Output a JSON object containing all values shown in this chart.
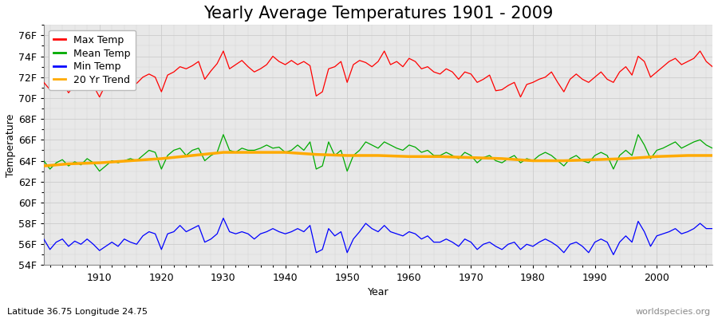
{
  "title": "Yearly Average Temperatures 1901 - 2009",
  "xlabel": "Year",
  "ylabel": "Temperature",
  "lat_lon_label": "Latitude 36.75 Longitude 24.75",
  "watermark": "worldspecies.org",
  "years": [
    1901,
    1902,
    1903,
    1904,
    1905,
    1906,
    1907,
    1908,
    1909,
    1910,
    1911,
    1912,
    1913,
    1914,
    1915,
    1916,
    1917,
    1918,
    1919,
    1920,
    1921,
    1922,
    1923,
    1924,
    1925,
    1926,
    1927,
    1928,
    1929,
    1930,
    1931,
    1932,
    1933,
    1934,
    1935,
    1936,
    1937,
    1938,
    1939,
    1940,
    1941,
    1942,
    1943,
    1944,
    1945,
    1946,
    1947,
    1948,
    1949,
    1950,
    1951,
    1952,
    1953,
    1954,
    1955,
    1956,
    1957,
    1958,
    1959,
    1960,
    1961,
    1962,
    1963,
    1964,
    1965,
    1966,
    1967,
    1968,
    1969,
    1970,
    1971,
    1972,
    1973,
    1974,
    1975,
    1976,
    1977,
    1978,
    1979,
    1980,
    1981,
    1982,
    1983,
    1984,
    1985,
    1986,
    1987,
    1988,
    1989,
    1990,
    1991,
    1992,
    1993,
    1994,
    1995,
    1996,
    1997,
    1998,
    1999,
    2000,
    2001,
    2002,
    2003,
    2004,
    2005,
    2006,
    2007,
    2008,
    2009
  ],
  "max_temp": [
    71.5,
    70.8,
    71.2,
    71.5,
    70.5,
    71.3,
    71.0,
    71.5,
    71.2,
    70.1,
    71.3,
    71.8,
    71.5,
    71.2,
    72.0,
    71.4,
    72.0,
    72.3,
    72.0,
    70.6,
    72.2,
    72.5,
    73.0,
    72.8,
    73.1,
    73.5,
    71.8,
    72.6,
    73.3,
    74.5,
    72.8,
    73.2,
    73.6,
    73.0,
    72.5,
    72.8,
    73.2,
    74.0,
    73.5,
    73.2,
    73.6,
    73.2,
    73.5,
    73.1,
    70.2,
    70.6,
    72.8,
    73.0,
    73.5,
    71.5,
    73.2,
    73.6,
    73.4,
    73.0,
    73.5,
    74.5,
    73.2,
    73.5,
    73.0,
    73.8,
    73.5,
    72.8,
    73.0,
    72.5,
    72.3,
    72.8,
    72.5,
    71.8,
    72.5,
    72.3,
    71.5,
    71.8,
    72.2,
    70.7,
    70.8,
    71.2,
    71.5,
    70.1,
    71.3,
    71.5,
    71.8,
    72.0,
    72.5,
    71.5,
    70.6,
    71.8,
    72.3,
    71.8,
    71.5,
    72.0,
    72.5,
    71.8,
    71.5,
    72.5,
    73.0,
    72.2,
    74.0,
    73.5,
    72.0,
    72.5,
    73.0,
    73.5,
    73.8,
    73.2,
    73.5,
    73.8,
    74.5,
    73.5,
    73.0
  ],
  "mean_temp": [
    64.0,
    63.2,
    63.8,
    64.1,
    63.5,
    63.9,
    63.6,
    64.2,
    63.8,
    63.0,
    63.5,
    64.0,
    63.8,
    64.0,
    64.2,
    64.0,
    64.5,
    65.0,
    64.8,
    63.2,
    64.5,
    65.0,
    65.2,
    64.5,
    65.0,
    65.2,
    64.0,
    64.5,
    64.8,
    66.5,
    65.0,
    64.8,
    65.2,
    65.0,
    65.0,
    65.2,
    65.5,
    65.2,
    65.3,
    64.8,
    65.0,
    65.5,
    65.0,
    65.8,
    63.2,
    63.5,
    65.8,
    64.5,
    65.0,
    63.0,
    64.5,
    65.0,
    65.8,
    65.5,
    65.2,
    65.8,
    65.5,
    65.2,
    65.0,
    65.5,
    65.3,
    64.8,
    65.0,
    64.5,
    64.5,
    64.8,
    64.5,
    64.2,
    64.8,
    64.5,
    63.8,
    64.3,
    64.5,
    64.0,
    63.8,
    64.2,
    64.5,
    63.8,
    64.2,
    64.0,
    64.5,
    64.8,
    64.5,
    64.0,
    63.5,
    64.2,
    64.5,
    64.0,
    63.8,
    64.5,
    64.8,
    64.5,
    63.2,
    64.5,
    65.0,
    64.5,
    66.5,
    65.5,
    64.2,
    65.0,
    65.2,
    65.5,
    65.8,
    65.2,
    65.5,
    65.8,
    66.0,
    65.5,
    65.2
  ],
  "min_temp": [
    56.5,
    55.5,
    56.2,
    56.5,
    55.8,
    56.3,
    56.0,
    56.5,
    56.0,
    55.4,
    55.8,
    56.2,
    55.8,
    56.5,
    56.2,
    56.0,
    56.8,
    57.2,
    57.0,
    55.5,
    57.0,
    57.2,
    57.8,
    57.2,
    57.5,
    57.8,
    56.2,
    56.5,
    57.0,
    58.5,
    57.2,
    57.0,
    57.2,
    57.0,
    56.5,
    57.0,
    57.2,
    57.5,
    57.2,
    57.0,
    57.2,
    57.5,
    57.2,
    57.8,
    55.2,
    55.5,
    57.5,
    56.8,
    57.2,
    55.2,
    56.5,
    57.2,
    58.0,
    57.5,
    57.2,
    57.8,
    57.2,
    57.0,
    56.8,
    57.2,
    57.0,
    56.5,
    56.8,
    56.2,
    56.2,
    56.5,
    56.2,
    55.8,
    56.5,
    56.2,
    55.5,
    56.0,
    56.2,
    55.8,
    55.5,
    56.0,
    56.2,
    55.5,
    56.0,
    55.8,
    56.2,
    56.5,
    56.2,
    55.8,
    55.2,
    56.0,
    56.2,
    55.8,
    55.2,
    56.2,
    56.5,
    56.2,
    55.0,
    56.2,
    56.8,
    56.2,
    58.2,
    57.2,
    55.8,
    56.8,
    57.0,
    57.2,
    57.5,
    57.0,
    57.2,
    57.5,
    58.0,
    57.5,
    57.5
  ],
  "trend_years": [
    1901,
    1905,
    1910,
    1915,
    1920,
    1925,
    1930,
    1935,
    1940,
    1945,
    1950,
    1955,
    1960,
    1965,
    1970,
    1975,
    1980,
    1985,
    1990,
    1995,
    2000,
    2005,
    2009
  ],
  "trend_values": [
    63.5,
    63.7,
    63.8,
    64.0,
    64.2,
    64.5,
    64.8,
    64.8,
    64.8,
    64.6,
    64.5,
    64.5,
    64.4,
    64.4,
    64.3,
    64.2,
    64.0,
    64.0,
    64.1,
    64.2,
    64.4,
    64.5,
    64.5
  ],
  "max_color": "#ff0000",
  "mean_color": "#00aa00",
  "min_color": "#0000ff",
  "trend_color": "#ffaa00",
  "bg_color": "#ffffff",
  "plot_bg_color": "#e8e8e8",
  "ylim": [
    54,
    77
  ],
  "yticks": [
    54,
    56,
    58,
    60,
    62,
    64,
    66,
    68,
    70,
    72,
    74,
    76
  ],
  "ytick_labels": [
    "54F",
    "56F",
    "58F",
    "60F",
    "62F",
    "64F",
    "66F",
    "68F",
    "70F",
    "72F",
    "74F",
    "76F"
  ],
  "grid_color": "#cccccc",
  "title_fontsize": 15,
  "axis_fontsize": 9,
  "legend_fontsize": 9
}
